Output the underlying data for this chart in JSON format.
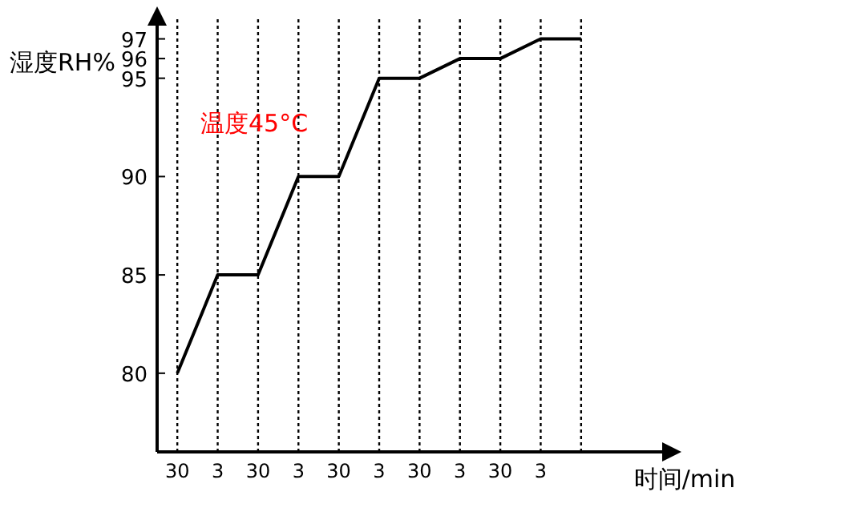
{
  "chart_data": {
    "type": "line",
    "xlabel": "时间/min",
    "ylabel": "湿度RH%",
    "annotations": [
      "温度45°C"
    ],
    "categories": [
      "30",
      "3",
      "30",
      "3",
      "30",
      "3",
      "30",
      "3",
      "30",
      "3",
      null
    ],
    "series": [
      {
        "color": "#000000",
        "values": [
          80,
          85,
          85,
          90,
          90,
          95,
          95,
          96,
          96,
          97,
          97
        ]
      }
    ],
    "ylim": [
      76,
      98
    ],
    "yticks": [
      80,
      85,
      90,
      95,
      96,
      97
    ],
    "grid": "x",
    "line_style": "solid"
  }
}
